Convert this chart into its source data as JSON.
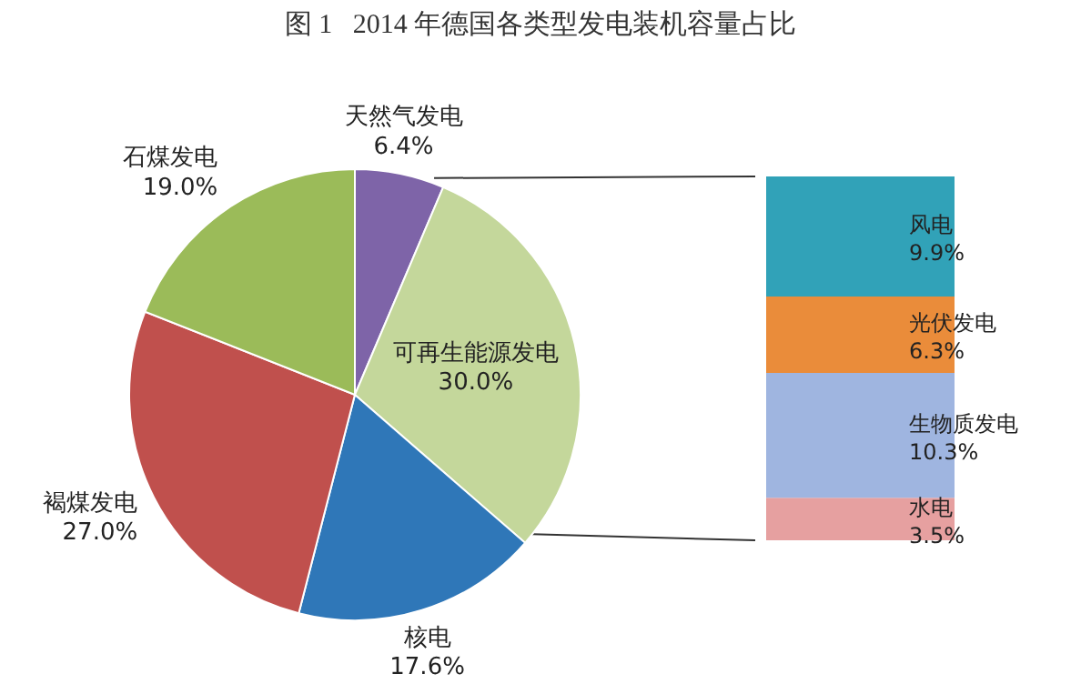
{
  "chart_data": [
    {
      "type": "pie",
      "title": "图 1   2014 年德国各类型发电装机容量占比",
      "categories": [
        "天然气发电",
        "可再生能源发电",
        "核电",
        "褐煤发电",
        "石煤发电"
      ],
      "values": [
        6.4,
        30.0,
        17.6,
        27.0,
        19.0
      ],
      "value_labels": [
        "6.4%",
        "30.0%",
        "17.6%",
        "27.0%",
        "19.0%"
      ],
      "colors": [
        "#7e64a8",
        "#c4d79b",
        "#2f77b8",
        "#c0504d",
        "#9bbb59"
      ],
      "legend": false
    },
    {
      "type": "bar",
      "stacked": true,
      "categories": [
        null
      ],
      "legend": false,
      "tick_labels": false,
      "series": [
        {
          "name": "水电",
          "color": "#e6a0a0",
          "values": [
            3.5
          ],
          "value_labels": [
            "3.5%"
          ]
        },
        {
          "name": "生物质发电",
          "color": "#9fb5e0",
          "values": [
            10.3
          ],
          "value_labels": [
            "10.3%"
          ]
        },
        {
          "name": "光伏发电",
          "color": "#ea8c3a",
          "values": [
            6.3
          ],
          "value_labels": [
            "6.3%"
          ]
        },
        {
          "name": "风电",
          "color": "#31a2b8",
          "values": [
            9.9
          ],
          "value_labels": [
            "9.9%"
          ]
        }
      ]
    }
  ]
}
